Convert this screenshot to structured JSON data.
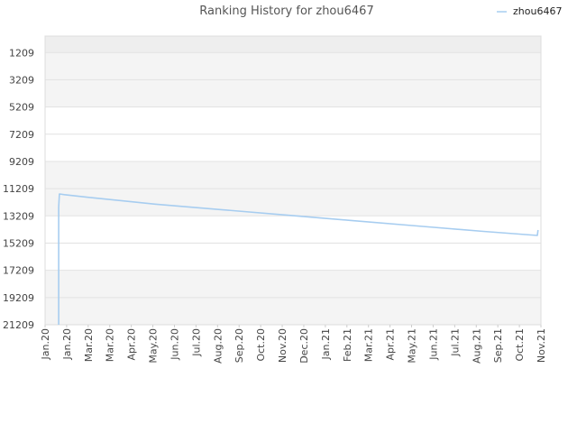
{
  "chart_data": {
    "type": "line",
    "title": "Ranking History for zhou6467",
    "xlabel": "",
    "ylabel": "",
    "y_inverted": true,
    "ylim": [
      -1,
      21209
    ],
    "y_ticks": [
      1209,
      3209,
      5209,
      7209,
      9209,
      11209,
      13209,
      15209,
      17209,
      19209,
      21209
    ],
    "x_ticks": [
      "Jan.20",
      "Jan.20",
      "Mar.20",
      "Mar.20",
      "Apr.20",
      "May.20",
      "Jun.20",
      "Jul.20",
      "Aug.20",
      "Sep.20",
      "Oct.20",
      "Nov.20",
      "Dec.20",
      "Jan.21",
      "Feb.21",
      "Mar.21",
      "Apr.21",
      "May.21",
      "Jun.21",
      "Jul.21",
      "Aug.21",
      "Sep.21",
      "Oct.21",
      "Nov.21"
    ],
    "x_range": [
      "2019-12-31",
      "2021-11-20"
    ],
    "grid": true,
    "alternating_bands": true,
    "legend": {
      "position": "top-right",
      "entries": [
        "zhou6467"
      ]
    },
    "series": [
      {
        "name": "zhou6467",
        "color": "#a7cdf0",
        "points": [
          {
            "date": "2020-01-19",
            "rank": 21209
          },
          {
            "date": "2020-01-19",
            "rank": 12550
          },
          {
            "date": "2020-01-20",
            "rank": 11600
          },
          {
            "date": "2020-01-27",
            "rank": 11650
          },
          {
            "date": "2020-03-01",
            "rank": 11850
          },
          {
            "date": "2020-06-01",
            "rank": 12350
          },
          {
            "date": "2020-09-01",
            "rank": 12750
          },
          {
            "date": "2020-12-01",
            "rank": 13150
          },
          {
            "date": "2021-03-01",
            "rank": 13550
          },
          {
            "date": "2021-06-01",
            "rank": 13950
          },
          {
            "date": "2021-09-01",
            "rank": 14350
          },
          {
            "date": "2021-11-15",
            "rank": 14650
          },
          {
            "date": "2021-11-16",
            "rank": 14250
          }
        ]
      }
    ]
  }
}
